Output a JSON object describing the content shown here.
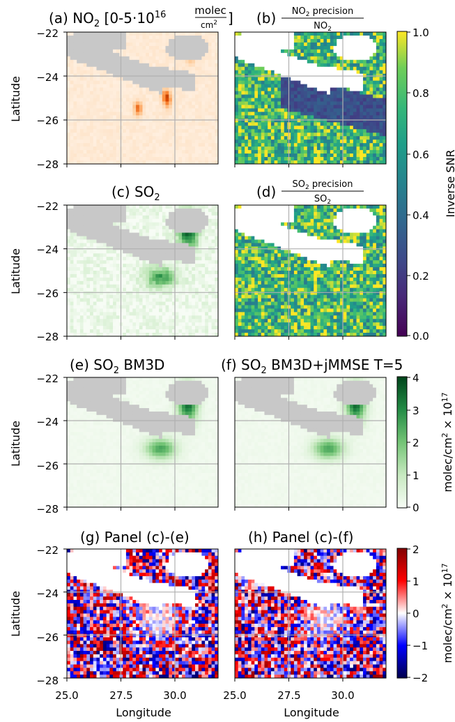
{
  "chart_data": [
    {
      "type": "heatmap",
      "panel": "a",
      "title": "(a) NO2 [0-5·10^16 molec/cm²]",
      "title_parts": {
        "prefix": "(a) NO",
        "sub": "2",
        "mid": " [0-5·10",
        "sup": "16",
        "frac_num": "molec",
        "frac_den": "cm",
        "frac_den_sup": "2",
        "suffix": "]"
      },
      "xlim": [
        25.0,
        32.0
      ],
      "ylim": [
        -28,
        -22
      ],
      "ylabel": "Latitude",
      "yticks": [
        "−22",
        "−24",
        "−26",
        "−28"
      ],
      "colormap": "Oranges",
      "vmin": 0,
      "vmax": 5,
      "grid": true
    },
    {
      "type": "heatmap",
      "panel": "b",
      "title_parts": {
        "prefix": "(b) ",
        "num": "NO",
        "num_sub": "2",
        "num_suffix": " precision",
        "den": "NO",
        "den_sub": "2"
      },
      "xlim": [
        25.0,
        32.0
      ],
      "ylim": [
        -28,
        -22
      ],
      "colormap": "viridis",
      "vmin": 0.0,
      "vmax": 1.0,
      "grid": true
    },
    {
      "type": "heatmap",
      "panel": "c",
      "title_parts": {
        "prefix": "(c) SO",
        "sub": "2"
      },
      "xlim": [
        25.0,
        32.0
      ],
      "ylim": [
        -28,
        -22
      ],
      "ylabel": "Latitude",
      "yticks": [
        "−22",
        "−24",
        "−26",
        "−28"
      ],
      "colormap": "Greens",
      "vmin": 0,
      "vmax": 4,
      "grid": true
    },
    {
      "type": "heatmap",
      "panel": "d",
      "title_parts": {
        "prefix": "(d) ",
        "num": "SO",
        "num_sub": "2",
        "num_suffix": " precision",
        "den": "SO",
        "den_sub": "2"
      },
      "xlim": [
        25.0,
        32.0
      ],
      "ylim": [
        -28,
        -22
      ],
      "colormap": "viridis",
      "vmin": 0.0,
      "vmax": 1.0,
      "grid": true
    },
    {
      "type": "heatmap",
      "panel": "e",
      "title_parts": {
        "prefix": "(e) SO",
        "sub": "2",
        "suffix": " BM3D"
      },
      "xlim": [
        25.0,
        32.0
      ],
      "ylim": [
        -28,
        -22
      ],
      "ylabel": "Latitude",
      "yticks": [
        "−22",
        "−24",
        "−26",
        "−28"
      ],
      "colormap": "Greens",
      "vmin": 0,
      "vmax": 4,
      "grid": true
    },
    {
      "type": "heatmap",
      "panel": "f",
      "title_parts": {
        "prefix": "(f) SO",
        "sub": "2",
        "suffix": " BM3D+jMMSE T=5"
      },
      "xlim": [
        25.0,
        32.0
      ],
      "ylim": [
        -28,
        -22
      ],
      "colormap": "Greens",
      "vmin": 0,
      "vmax": 4,
      "grid": true
    },
    {
      "type": "heatmap",
      "panel": "g",
      "title": "(g) Panel (c)-(e)",
      "xlim": [
        25.0,
        32.0
      ],
      "ylim": [
        -28,
        -22
      ],
      "ylabel": "Latitude",
      "yticks": [
        "−22",
        "−24",
        "−26",
        "−28"
      ],
      "xlabel": "Longitude",
      "xticks": [
        "25.0",
        "27.5",
        "30.0"
      ],
      "colormap": "seismic",
      "vmin": -2,
      "vmax": 2,
      "grid": true
    },
    {
      "type": "heatmap",
      "panel": "h",
      "title": "(h) Panel (c)-(f)",
      "xlim": [
        25.0,
        32.0
      ],
      "ylim": [
        -28,
        -22
      ],
      "xlabel": "Longitude",
      "xticks": [
        "25.0",
        "27.5",
        "30.0"
      ],
      "colormap": "seismic",
      "vmin": -2,
      "vmax": 2,
      "grid": true
    }
  ],
  "colorbars": [
    {
      "name": "inverse-snr",
      "label": "Inverse SNR",
      "ticks": [
        "1.0",
        "0.8",
        "0.6",
        "0.4",
        "0.2",
        "0.0"
      ],
      "vmin": 0.0,
      "vmax": 1.0,
      "colormap": "viridis"
    },
    {
      "name": "so2-column",
      "label_parts": {
        "pre": "molec/cm",
        "sup": "2",
        "mid": " × 10",
        "sup2": "17"
      },
      "ticks": [
        "4",
        "3",
        "2",
        "1",
        "0"
      ],
      "vmin": 0,
      "vmax": 4,
      "colormap": "Greens"
    },
    {
      "name": "difference",
      "label_parts": {
        "pre": "molec/cm",
        "sup": "2",
        "mid": " × 10",
        "sup2": "17"
      },
      "ticks": [
        "2",
        "1",
        "0",
        "−1",
        "−2"
      ],
      "vmin": -2,
      "vmax": 2,
      "colormap": "seismic"
    }
  ],
  "colors": {
    "masked_gray": "#c8c8c8",
    "masked_white": "#ffffff",
    "grid": "#b0b0b0",
    "viridis_low": "#440154",
    "viridis_high": "#fde725",
    "greens_high": "#00441b",
    "seismic_low": "#00004c",
    "seismic_high": "#800000"
  }
}
